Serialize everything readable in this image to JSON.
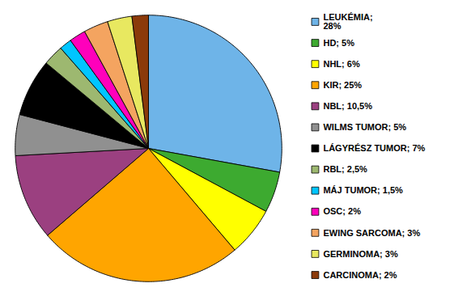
{
  "chart_data": {
    "type": "pie",
    "categories": [
      "LEUKÉMIA",
      "HD",
      "NHL",
      "KIR",
      "NBL",
      "WILMS TUMOR",
      "LÁGYRÉSZ TUMOR",
      "RBL",
      "MÁJ TUMOR",
      "OSC",
      "EWING SARCOMA",
      "GERMINOMA",
      "CARCINOMA"
    ],
    "values": [
      28,
      5,
      6,
      25,
      10.5,
      5,
      7,
      2.5,
      1.5,
      2,
      3,
      3,
      2
    ],
    "value_labels": [
      "LEUKÉMIA;\n28%",
      "HD; 5%",
      "NHL; 6%",
      "KIR; 25%",
      "NBL; 10,5%",
      "WILMS TUMOR; 5%",
      "LÁGYRÉSZ TUMOR; 7%",
      "RBL; 2,5%",
      "MÁJ TUMOR; 1,5%",
      "OSC; 2%",
      "EWING SARCOMA; 3%",
      "GERMINOMA; 3%",
      "CARCINOMA; 2%"
    ],
    "colors": [
      "#6EB4E8",
      "#3DAA30",
      "#FFFF00",
      "#FFA500",
      "#9B4080",
      "#909090",
      "#000000",
      "#9DB870",
      "#00C5FF",
      "#FF00BB",
      "#F4A460",
      "#E8E860",
      "#8B3A0A"
    ]
  }
}
